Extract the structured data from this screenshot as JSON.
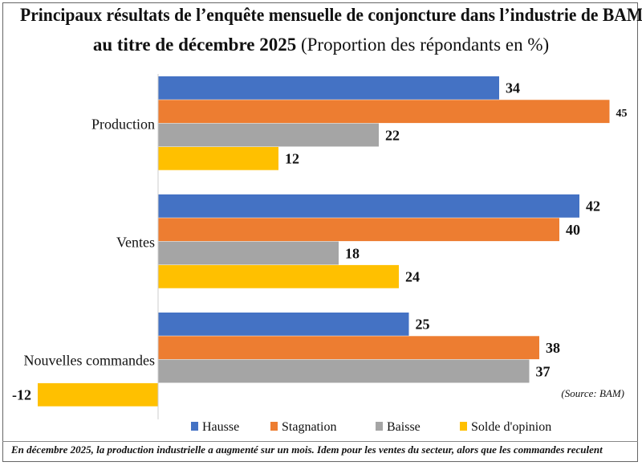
{
  "chart_data": {
    "type": "bar",
    "orientation": "horizontal",
    "title": "Principaux résultats de l’enquête mensuelle de conjoncture dans l’industrie de BAM",
    "title_line2": "au titre de décembre 2025",
    "subtitle": "(Proportion des répondants en %)",
    "categories": [
      "Production",
      "Ventes",
      "Nouvelles commandes"
    ],
    "series": [
      {
        "name": "Hausse",
        "color": "#4472C4",
        "values": [
          34,
          42,
          25
        ]
      },
      {
        "name": "Stagnation",
        "color": "#ED7D31",
        "values": [
          45,
          40,
          38
        ]
      },
      {
        "name": "Baisse",
        "color": "#A5A5A5",
        "values": [
          22,
          18,
          37
        ]
      },
      {
        "name": "Solde d'opinion",
        "color": "#FFC000",
        "values": [
          12,
          24,
          -12
        ]
      }
    ],
    "legend": "bottom",
    "grid": false,
    "source": "(Source: BAM)",
    "caption": "En décembre 2025, la production industrielle a augmenté sur un mois. Idem pour les ventes du secteur, alors que les commandes reculent"
  }
}
